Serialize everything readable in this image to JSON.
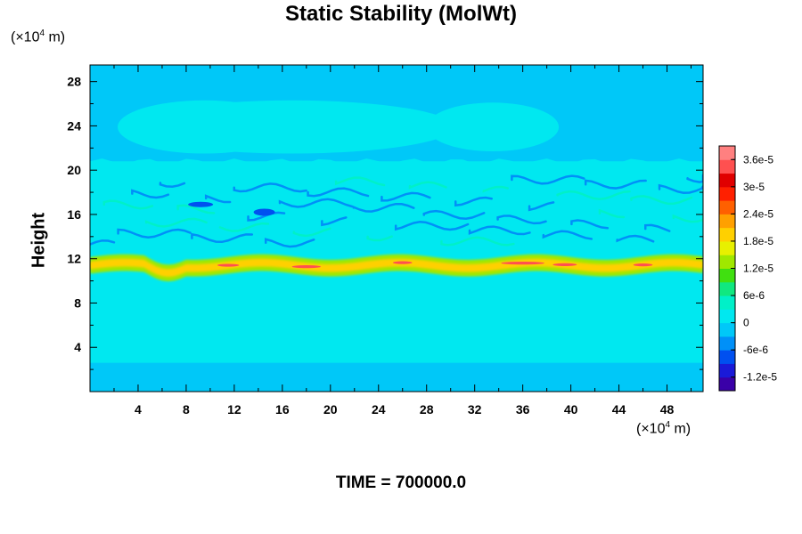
{
  "chart_data": {
    "type": "heatmap",
    "title": "Static Stability (MolWt)",
    "ylabel": "Height",
    "xunit_prefix": "(×10",
    "xunit_exp": "4",
    "xunit_suffix": " m)",
    "yunit_prefix": "(×10",
    "yunit_exp": "4",
    "yunit_suffix": " m)",
    "xlim": [
      0,
      51
    ],
    "ylim": [
      0,
      29.5
    ],
    "xticks": [
      "4",
      "8",
      "12",
      "16",
      "20",
      "24",
      "28",
      "32",
      "36",
      "40",
      "44",
      "48"
    ],
    "xtick_values": [
      4,
      8,
      12,
      16,
      20,
      24,
      28,
      32,
      36,
      40,
      44,
      48
    ],
    "yticks": [
      "4",
      "8",
      "12",
      "16",
      "20",
      "24",
      "28"
    ],
    "ytick_values": [
      4,
      8,
      12,
      16,
      20,
      24,
      28
    ],
    "colorbar": {
      "range": [
        -1.5e-05,
        3.9e-05
      ],
      "labels": [
        "3.6e-5",
        "3e-5",
        "2.4e-5",
        "1.8e-5",
        "1.2e-5",
        "6e-6",
        "0",
        "-6e-6",
        "-1.2e-5"
      ],
      "label_values": [
        3.6e-05,
        3e-05,
        2.4e-05,
        1.8e-05,
        1.2e-05,
        6e-06,
        0,
        -6e-06,
        -1.2e-05
      ],
      "colors": [
        "#3a00a8",
        "#1a1ad8",
        "#0050f0",
        "#0090f8",
        "#00c8f8",
        "#00e8f0",
        "#00f0c8",
        "#10e880",
        "#40e010",
        "#a0e800",
        "#e8f000",
        "#ffd000",
        "#ffa000",
        "#ff6000",
        "#ff2000",
        "#e00000",
        "#ff5050",
        "#ff8080"
      ]
    },
    "regions": {
      "background": -2e-06,
      "midlayer": 1e-06,
      "tropopause_band": 1.4e-05,
      "tropopause_peak": 3.3e-05,
      "upper_ellipses": 3e-07,
      "negative_patches": -9e-06
    }
  },
  "footer": {
    "time_label": "TIME = 700000.0"
  }
}
